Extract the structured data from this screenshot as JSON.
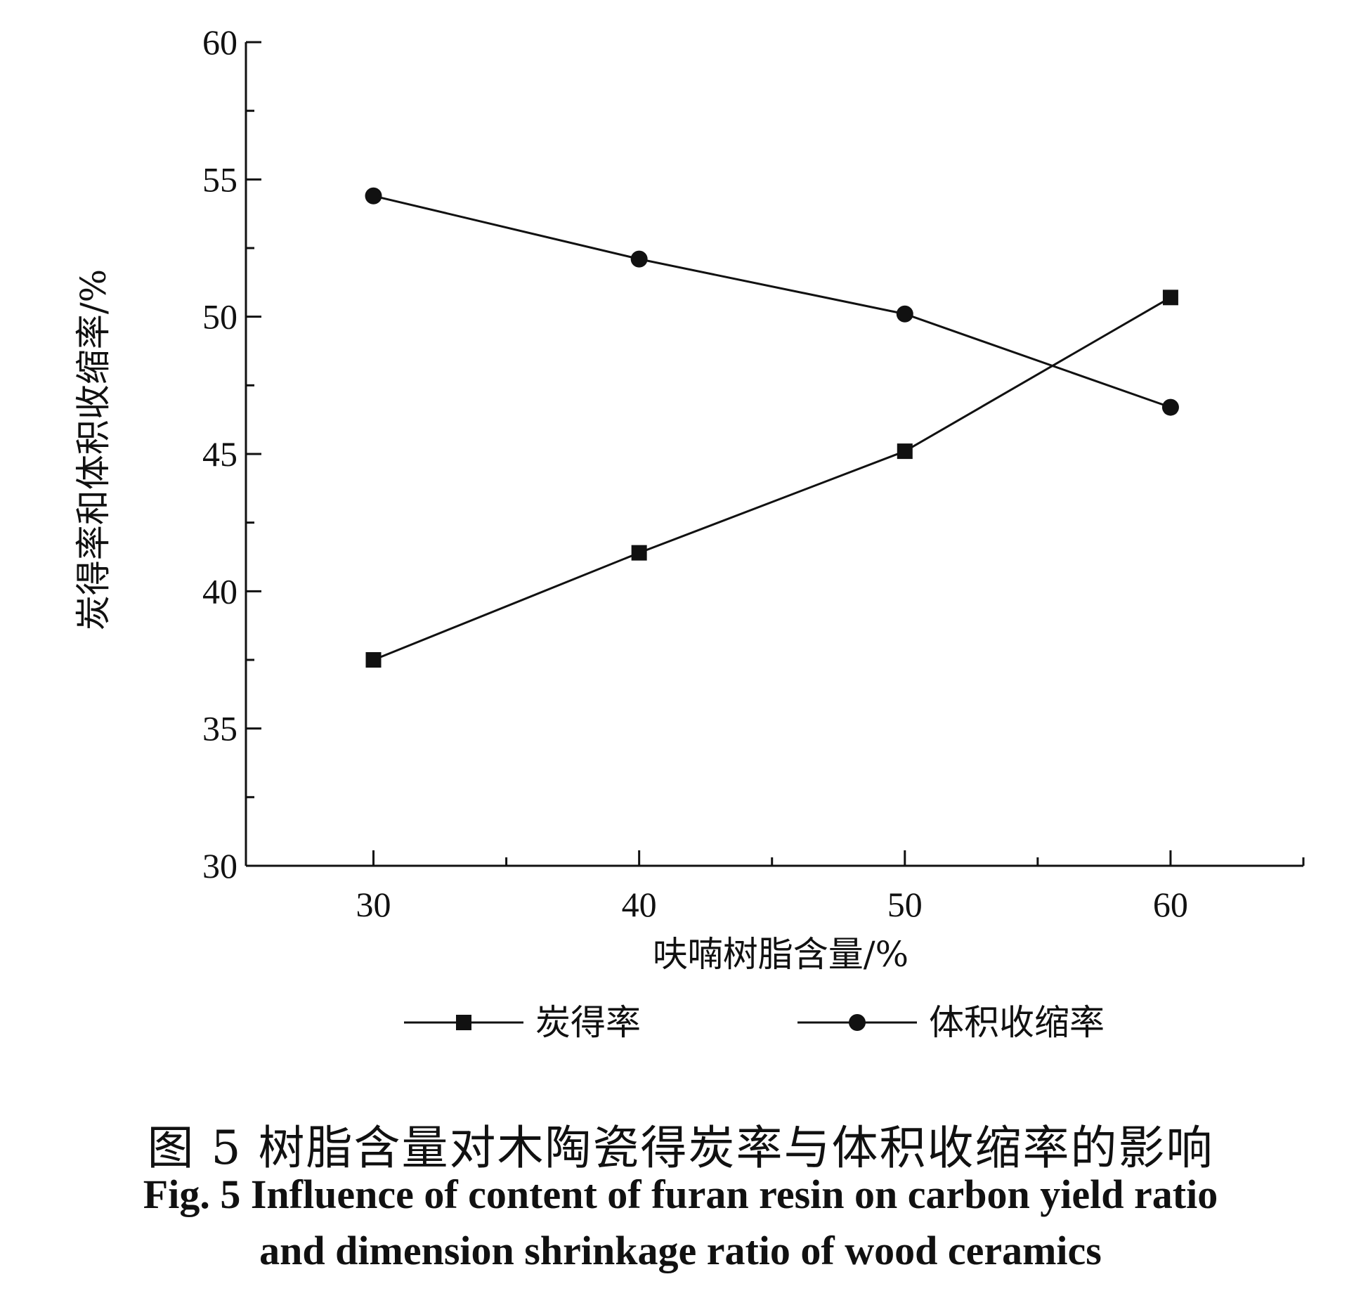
{
  "chart_data": {
    "type": "line",
    "x": [
      30,
      40,
      50,
      60
    ],
    "xlim": [
      25.2,
      65
    ],
    "ylim": [
      30,
      60
    ],
    "x_ticks": [
      30,
      40,
      50,
      60
    ],
    "y_ticks": [
      30,
      35,
      40,
      45,
      50,
      55,
      60
    ],
    "xlabel": "呋喃树脂含量/%",
    "ylabel": "炭得率和体积收缩率/%",
    "grid": false,
    "legend_position": "bottom",
    "series": [
      {
        "name": "炭得率",
        "marker": "square",
        "color": "#111111",
        "values": [
          37.5,
          41.4,
          45.1,
          50.7
        ]
      },
      {
        "name": "体积收缩率",
        "marker": "circle",
        "color": "#111111",
        "values": [
          54.4,
          52.1,
          50.1,
          46.7
        ]
      }
    ]
  },
  "caption": {
    "cn": "图 5   树脂含量对木陶瓷得炭率与体积收缩率的影响",
    "en_line1": "Fig. 5   Influence of content of furan resin on carbon yield ratio",
    "en_line2": "and dimension shrinkage ratio of wood ceramics"
  }
}
